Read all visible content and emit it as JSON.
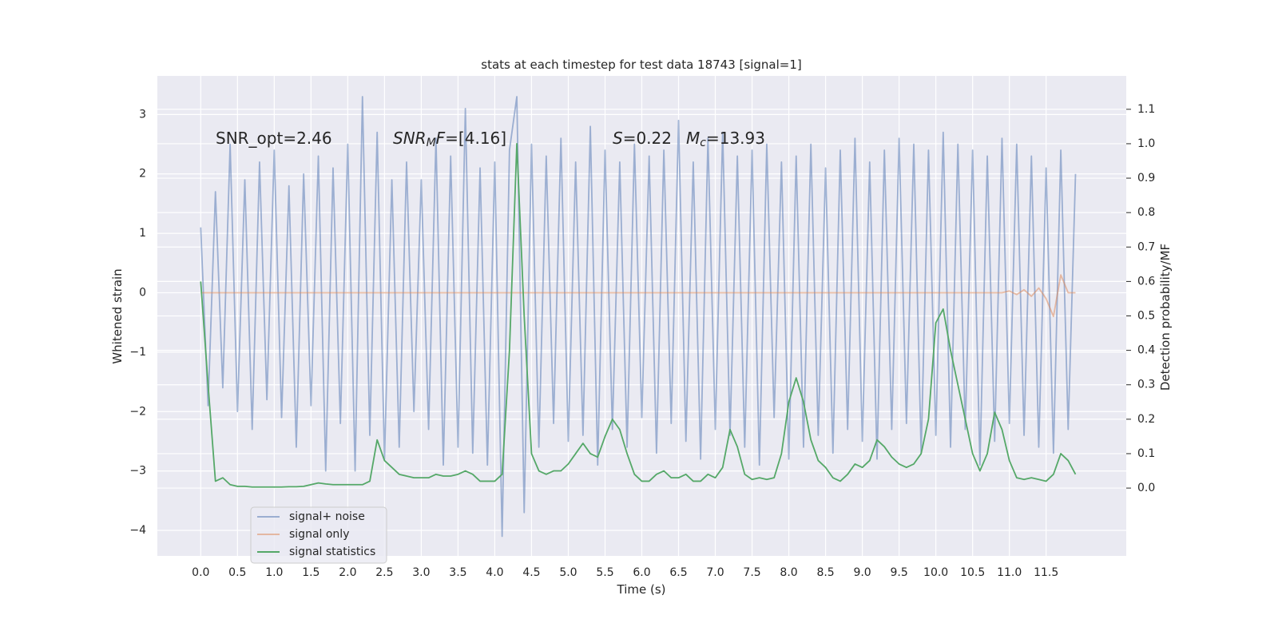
{
  "chart_data": {
    "type": "line",
    "title": "stats at each timestep for test data 18743 [signal=1]",
    "xlabel": "Time (s)",
    "ylabel": "Whitened strain",
    "y2label": "Detection probability/MF",
    "annotations": [
      [
        "SNR_opt=2.46"
      ],
      [
        "SNR",
        "M",
        "F",
        "=[4.16]"
      ],
      [
        "S",
        "=0.22"
      ],
      [
        "M",
        "c",
        "=13.93"
      ]
    ],
    "grid": true,
    "legend": "lower left",
    "xlim": [
      -0.59,
      12.59
    ],
    "ylim": [
      -4.43,
      3.65
    ],
    "y2lim": [
      -0.197,
      1.197
    ],
    "xticks": [
      {
        "value": 0,
        "label": "0.0"
      },
      0.5,
      {
        "value": 1,
        "label": "1.0"
      },
      1.5,
      {
        "value": 2,
        "label": "2.0"
      },
      2.5,
      {
        "value": 3,
        "label": "3.0"
      },
      3.5,
      {
        "value": 4,
        "label": "4.0"
      },
      4.5,
      {
        "value": 5,
        "label": "5.0"
      },
      5.5,
      {
        "value": 6,
        "label": "6.0"
      },
      6.5,
      {
        "value": 7,
        "label": "7.0"
      },
      7.5,
      {
        "value": 8,
        "label": "8.0"
      },
      8.5,
      {
        "value": 9,
        "label": "9.0"
      },
      9.5,
      {
        "value": 10,
        "label": "10.0"
      },
      10.5,
      {
        "value": 11,
        "label": "11.0"
      },
      11.5
    ],
    "yticks": [
      {
        "value": -4,
        "label": "−4"
      },
      {
        "value": -3,
        "label": "−3"
      },
      {
        "value": -2,
        "label": "−2"
      },
      {
        "value": -1,
        "label": "−1"
      },
      0,
      1,
      2,
      3
    ],
    "y2ticks": [
      {
        "value": 0,
        "label": "0.0"
      },
      0.1,
      0.2,
      0.3,
      0.4,
      0.5,
      0.6,
      0.7,
      0.8,
      0.9,
      {
        "value": 1,
        "label": "1.0"
      },
      1.1
    ],
    "x": [
      0,
      0.1,
      0.2,
      0.3,
      0.4,
      0.5,
      0.6,
      0.7,
      0.8,
      0.9,
      1,
      1.1,
      1.2,
      1.3,
      1.4,
      1.5,
      1.6,
      1.7,
      1.8,
      1.9,
      2,
      2.1,
      2.2,
      2.3,
      2.4,
      2.5,
      2.6,
      2.7,
      2.8,
      2.9,
      3,
      3.1,
      3.2,
      3.3,
      3.4,
      3.5,
      3.6,
      3.7,
      3.8,
      3.9,
      4,
      4.1,
      4.2,
      4.3,
      4.4,
      4.5,
      4.6,
      4.7,
      4.8,
      4.9,
      5,
      5.1,
      5.2,
      5.3,
      5.4,
      5.5,
      5.6,
      5.7,
      5.8,
      5.9,
      6,
      6.1,
      6.2,
      6.3,
      6.4,
      6.5,
      6.6,
      6.7,
      6.8,
      6.9,
      7,
      7.1,
      7.2,
      7.3,
      7.4,
      7.5,
      7.6,
      7.7,
      7.8,
      7.9,
      8,
      8.1,
      8.2,
      8.3,
      8.4,
      8.5,
      8.6,
      8.7,
      8.8,
      8.9,
      9,
      9.1,
      9.2,
      9.3,
      9.4,
      9.5,
      9.6,
      9.7,
      9.8,
      9.9,
      10,
      10.1,
      10.2,
      10.3,
      10.4,
      10.5,
      10.6,
      10.7,
      10.8,
      10.9,
      11,
      11.1,
      11.2,
      11.3,
      11.4,
      11.5,
      11.6,
      11.7,
      11.8,
      11.9
    ],
    "series": [
      {
        "name": "signal+ noise",
        "color": "#4c72b0",
        "opacity": 0.5,
        "values": [
          1.1,
          -1.9,
          1.7,
          -1.6,
          2.5,
          -2.0,
          1.9,
          -2.3,
          2.2,
          -1.8,
          2.4,
          -2.1,
          1.8,
          -2.6,
          2.0,
          -1.9,
          2.3,
          -3.0,
          2.1,
          -2.2,
          2.5,
          -3.0,
          3.3,
          -2.4,
          2.7,
          -2.8,
          1.9,
          -2.6,
          2.2,
          -2.0,
          1.9,
          -2.3,
          2.6,
          -2.9,
          2.3,
          -2.6,
          3.1,
          -2.7,
          2.1,
          -2.9,
          2.2,
          -4.1,
          2.4,
          3.3,
          -3.7,
          2.5,
          -2.6,
          2.3,
          -2.2,
          2.6,
          -2.5,
          2.2,
          -2.4,
          2.8,
          -2.9,
          2.4,
          -2.3,
          2.2,
          -2.6,
          2.5,
          -2.1,
          2.3,
          -2.7,
          2.4,
          -2.2,
          2.9,
          -2.5,
          2.2,
          -2.8,
          2.6,
          -2.3,
          2.7,
          -2.4,
          2.3,
          -2.6,
          2.4,
          -2.9,
          2.5,
          -2.1,
          2.2,
          -2.8,
          2.3,
          -2.6,
          2.5,
          -2.4,
          2.1,
          -2.7,
          2.4,
          -2.3,
          2.6,
          -2.5,
          2.2,
          -2.8,
          2.4,
          -2.3,
          2.6,
          -2.2,
          2.5,
          -2.7,
          2.4,
          -2.4,
          2.7,
          -2.6,
          2.5,
          -2.3,
          2.4,
          -2.9,
          2.3,
          -2.5,
          2.6,
          -2.2,
          2.5,
          -2.4,
          2.3,
          -2.6,
          2.1,
          -2.7,
          2.4,
          -2.3,
          2.0
        ]
      },
      {
        "name": "signal only",
        "color": "#dd8452",
        "opacity": 0.5,
        "values": [
          0,
          0,
          0,
          0,
          0,
          0,
          0,
          0,
          0,
          0,
          0,
          0,
          0,
          0,
          0,
          0,
          0,
          0,
          0,
          0,
          0,
          0,
          0,
          0,
          0,
          0,
          0,
          0,
          0,
          0,
          0,
          0,
          0,
          0,
          0,
          0,
          0,
          0,
          0,
          0,
          0,
          0,
          0,
          0,
          0,
          0,
          0,
          0,
          0,
          0,
          0,
          0,
          0,
          0,
          0,
          0,
          0,
          0,
          0,
          0,
          0,
          0,
          0,
          0,
          0,
          0,
          0,
          0,
          0,
          0,
          0,
          0,
          0,
          0,
          0,
          0,
          0,
          0,
          0,
          0,
          0,
          0,
          0,
          0,
          0,
          0,
          0,
          0,
          0,
          0,
          0,
          0,
          0,
          0,
          0,
          0,
          0,
          0,
          0,
          0,
          0,
          0,
          0,
          0,
          0,
          0,
          0,
          0,
          0,
          0,
          0.03,
          -0.03,
          0.05,
          -0.06,
          0.08,
          -0.1,
          -0.4,
          0.3,
          0,
          0
        ]
      },
      {
        "name": "signal statistics",
        "color": "#55a868",
        "opacity": 1,
        "axis": "y2",
        "values": [
          0.6,
          0.3,
          0.02,
          0.03,
          0.01,
          0.005,
          0.005,
          0.003,
          0.003,
          0.003,
          0.003,
          0.003,
          0.004,
          0.004,
          0.005,
          0.01,
          0.015,
          0.012,
          0.01,
          0.01,
          0.01,
          0.01,
          0.01,
          0.02,
          0.14,
          0.08,
          0.06,
          0.04,
          0.035,
          0.03,
          0.03,
          0.03,
          0.04,
          0.035,
          0.035,
          0.04,
          0.05,
          0.04,
          0.02,
          0.02,
          0.02,
          0.04,
          0.4,
          1.0,
          0.5,
          0.1,
          0.05,
          0.04,
          0.05,
          0.05,
          0.07,
          0.1,
          0.13,
          0.1,
          0.09,
          0.15,
          0.2,
          0.17,
          0.1,
          0.04,
          0.02,
          0.02,
          0.04,
          0.05,
          0.03,
          0.03,
          0.04,
          0.02,
          0.02,
          0.04,
          0.03,
          0.06,
          0.17,
          0.12,
          0.04,
          0.025,
          0.03,
          0.025,
          0.03,
          0.1,
          0.25,
          0.32,
          0.25,
          0.14,
          0.08,
          0.06,
          0.03,
          0.02,
          0.04,
          0.07,
          0.06,
          0.08,
          0.14,
          0.12,
          0.09,
          0.07,
          0.06,
          0.07,
          0.1,
          0.2,
          0.48,
          0.52,
          0.4,
          0.3,
          0.2,
          0.1,
          0.05,
          0.1,
          0.22,
          0.17,
          0.08,
          0.03,
          0.025,
          0.03,
          0.025,
          0.02,
          0.04,
          0.1,
          0.08,
          0.04
        ]
      }
    ]
  }
}
